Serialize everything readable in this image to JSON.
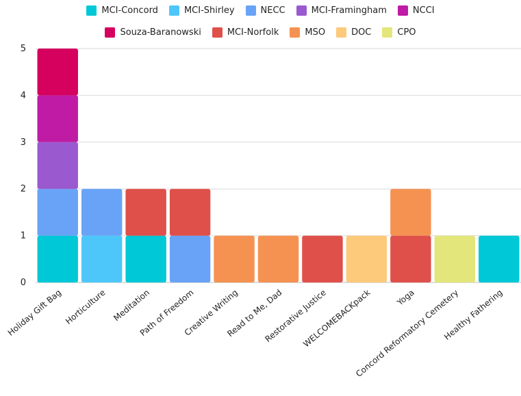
{
  "chart_data": {
    "type": "bar",
    "stacked": true,
    "title": "",
    "xlabel": "",
    "ylabel": "",
    "ylim": [
      0,
      5
    ],
    "yticks": [
      0,
      1,
      2,
      3,
      4,
      5
    ],
    "grid": true,
    "legend_position": "top",
    "categories": [
      "Holiday Gift Bag",
      "Horticulture",
      "Meditation",
      "Path of Freedom",
      "Creative Writing",
      "Read to Me, Dad",
      "Restorative Justice",
      "WELCOMEBACKpack",
      "Yoga",
      "Concord Reformatory Cemetery",
      "Healthy Fathering"
    ],
    "series": [
      {
        "name": "MCI-Concord",
        "color": "#00C8D7",
        "values": [
          1,
          0,
          1,
          0,
          0,
          0,
          0,
          0,
          0,
          0,
          1
        ]
      },
      {
        "name": "MCI-Shirley",
        "color": "#4DC7FA",
        "values": [
          0,
          1,
          0,
          0,
          0,
          0,
          0,
          0,
          0,
          0,
          0
        ]
      },
      {
        "name": "NECC",
        "color": "#68A3F7",
        "values": [
          1,
          1,
          0,
          1,
          0,
          0,
          0,
          0,
          0,
          0,
          0
        ]
      },
      {
        "name": "MCI-Framingham",
        "color": "#9B59D0",
        "values": [
          1,
          0,
          0,
          0,
          0,
          0,
          0,
          0,
          0,
          0,
          0
        ]
      },
      {
        "name": "NCCI",
        "color": "#BF1BA5",
        "values": [
          1,
          0,
          0,
          0,
          0,
          0,
          0,
          0,
          0,
          0,
          0
        ]
      },
      {
        "name": "Souza-Baranowski",
        "color": "#D6005E",
        "values": [
          1,
          0,
          0,
          0,
          0,
          0,
          0,
          0,
          0,
          0,
          0
        ]
      },
      {
        "name": "MCI-Norfolk",
        "color": "#E0504A",
        "values": [
          0,
          0,
          1,
          1,
          0,
          0,
          1,
          0,
          1,
          0,
          0
        ]
      },
      {
        "name": "MSO",
        "color": "#F59252",
        "values": [
          0,
          0,
          0,
          0,
          1,
          1,
          0,
          0,
          1,
          0,
          0
        ]
      },
      {
        "name": "DOC",
        "color": "#FDC97A",
        "values": [
          0,
          0,
          0,
          0,
          0,
          0,
          0,
          1,
          0,
          0,
          0
        ]
      },
      {
        "name": "CPO",
        "color": "#E3E67A",
        "values": [
          0,
          0,
          0,
          0,
          0,
          0,
          0,
          0,
          0,
          1,
          0
        ]
      }
    ]
  }
}
